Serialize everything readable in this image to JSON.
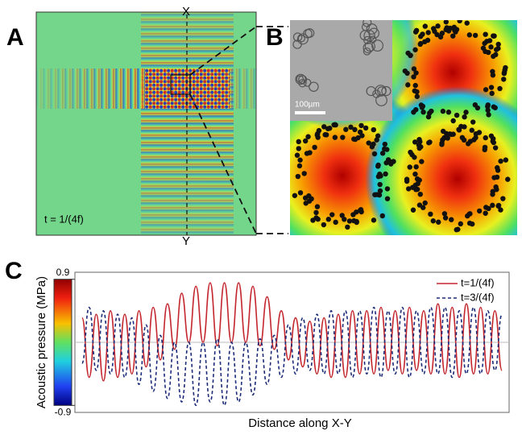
{
  "panels": {
    "a": {
      "label": "A",
      "x_marker": "X",
      "y_marker": "Y",
      "time_label": "t = 1/(4f)"
    },
    "b": {
      "label": "B",
      "scale_bar": "100µm"
    },
    "c": {
      "label": "C"
    }
  },
  "chart_data": {
    "type": "line",
    "ylabel": "Acoustic pressure (MPa)",
    "xlabel": "Distance along X-Y",
    "ylim": [
      -1,
      1
    ],
    "yticks": [
      -0.9,
      0.9
    ],
    "legend": "upper right",
    "series": [
      {
        "name": "t=1/(4f)",
        "color": "#c4262e",
        "dash": false,
        "values": [
          0.35,
          -0.5,
          0.4,
          -0.55,
          0.45,
          -0.5,
          0.4,
          -0.45,
          0.45,
          -0.35,
          0.5,
          -0.25,
          0.55,
          -0.1,
          0.7,
          0.0,
          0.8,
          0.0,
          0.85,
          -0.05,
          0.85,
          0.0,
          0.85,
          0.0,
          0.8,
          -0.05,
          0.65,
          -0.1,
          0.45,
          -0.25,
          0.35,
          -0.35,
          0.3,
          -0.45,
          0.35,
          -0.5,
          0.4,
          -0.5,
          0.45,
          -0.45,
          0.45,
          -0.45,
          0.5,
          -0.4,
          0.45,
          -0.45,
          0.5,
          -0.4,
          0.45,
          -0.45,
          0.55,
          -0.45,
          0.5,
          -0.5,
          0.55,
          -0.45,
          0.5,
          -0.45,
          0.45,
          -0.4
        ]
      },
      {
        "name": "t=3/(4f)",
        "color": "#1c2b78",
        "dash": true,
        "values": [
          -0.3,
          0.5,
          -0.4,
          0.45,
          -0.45,
          0.4,
          -0.5,
          0.35,
          -0.6,
          0.25,
          -0.7,
          0.1,
          -0.8,
          0.0,
          -0.85,
          0.0,
          -0.9,
          0.0,
          -0.85,
          0.05,
          -0.9,
          0.0,
          -0.85,
          0.0,
          -0.75,
          0.05,
          -0.6,
          0.1,
          -0.5,
          0.25,
          -0.45,
          0.35,
          -0.4,
          0.4,
          -0.45,
          0.45,
          -0.45,
          0.45,
          -0.5,
          0.45,
          -0.45,
          0.5,
          -0.5,
          0.45,
          -0.45,
          0.5,
          -0.5,
          0.45,
          -0.45,
          0.5,
          -0.45,
          0.5,
          -0.5,
          0.45,
          -0.45,
          0.5,
          -0.45,
          0.45,
          -0.4,
          0.4
        ]
      }
    ]
  }
}
